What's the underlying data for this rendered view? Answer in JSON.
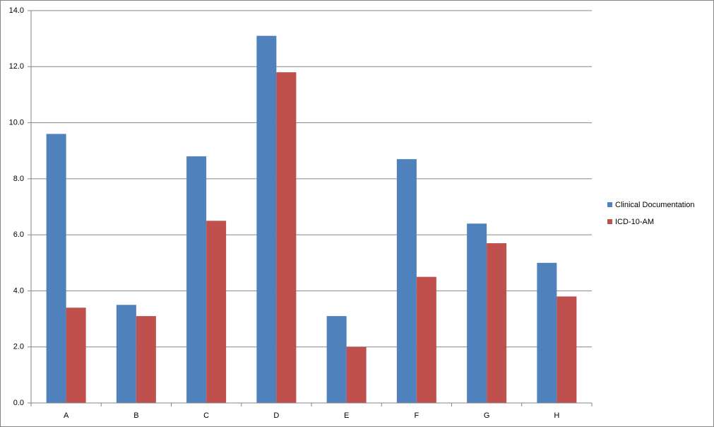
{
  "chart_data": {
    "type": "bar",
    "categories": [
      "A",
      "B",
      "C",
      "D",
      "E",
      "F",
      "G",
      "H"
    ],
    "series": [
      {
        "name": "Clinical Documentation",
        "color": "#4f81bd",
        "values": [
          9.6,
          3.5,
          8.8,
          13.1,
          3.1,
          8.7,
          6.4,
          5.0
        ]
      },
      {
        "name": "ICD-10-AM",
        "color": "#c0504d",
        "values": [
          3.4,
          3.1,
          6.5,
          11.8,
          2.0,
          4.5,
          5.7,
          3.8
        ]
      }
    ],
    "ylim": [
      0,
      14
    ],
    "yticks": [
      {
        "value": 0,
        "label": "0.0"
      },
      {
        "value": 2,
        "label": "2.0"
      },
      {
        "value": 4,
        "label": "4.0"
      },
      {
        "value": 6,
        "label": "6.0"
      },
      {
        "value": 8,
        "label": "8.0"
      },
      {
        "value": 10,
        "label": "10.0"
      },
      {
        "value": 12,
        "label": "12.0"
      },
      {
        "value": 14,
        "label": "14.0"
      }
    ],
    "grid": true,
    "legend": "right"
  }
}
